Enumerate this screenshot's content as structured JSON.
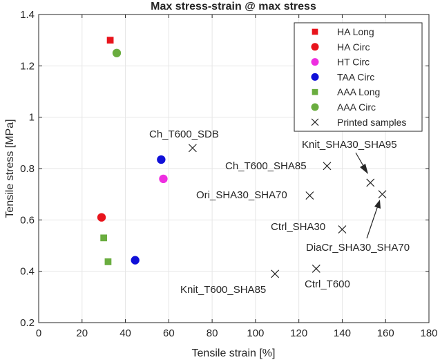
{
  "chart_data": {
    "type": "scatter",
    "title": "Max stress-strain @ max stress",
    "xlabel": "Tensile strain [%]",
    "ylabel": "Tensile stress [MPa]",
    "xlim": [
      0,
      180
    ],
    "ylim": [
      0.2,
      1.4
    ],
    "xticks": [
      0,
      20,
      40,
      60,
      80,
      100,
      120,
      140,
      160,
      180
    ],
    "yticks": [
      0.2,
      0.4,
      0.6,
      0.8,
      1.0,
      1.2,
      1.4
    ],
    "xtick_labels": [
      "0",
      "20",
      "40",
      "60",
      "80",
      "100",
      "120",
      "140",
      "160",
      "180"
    ],
    "ytick_labels": [
      "0.2",
      "0.4",
      "0.6",
      "0.8",
      "1",
      "1.2",
      "1.4"
    ],
    "grid": true,
    "legend_position": "top-right",
    "series": [
      {
        "name": "HA Long",
        "marker": "square",
        "color": "#e8141c",
        "points": [
          {
            "x": 33,
            "y": 1.3
          }
        ]
      },
      {
        "name": "HA Circ",
        "marker": "circle",
        "color": "#e8141c",
        "points": [
          {
            "x": 29,
            "y": 0.61
          }
        ]
      },
      {
        "name": "HT Circ",
        "marker": "circle",
        "color": "#ee2ee0",
        "points": [
          {
            "x": 57.5,
            "y": 0.76
          }
        ]
      },
      {
        "name": "TAA Circ",
        "marker": "circle",
        "color": "#1010d8",
        "points": [
          {
            "x": 56.5,
            "y": 0.835
          },
          {
            "x": 44.5,
            "y": 0.443
          }
        ]
      },
      {
        "name": "AAA Long",
        "marker": "square",
        "color": "#6aad3f",
        "points": [
          {
            "x": 30,
            "y": 0.53
          },
          {
            "x": 32,
            "y": 0.437
          }
        ]
      },
      {
        "name": "AAA Circ",
        "marker": "circle",
        "color": "#6aad3f",
        "points": [
          {
            "x": 36,
            "y": 1.25
          }
        ]
      },
      {
        "name": "Printed samples",
        "marker": "x",
        "color": "#262626",
        "points": [
          {
            "x": 71,
            "y": 0.88,
            "label": "Ch_T600_SDB"
          },
          {
            "x": 133,
            "y": 0.81,
            "label": "Ch_T600_SHA85"
          },
          {
            "x": 125,
            "y": 0.695,
            "label": "Ori_SHA30_SHA70"
          },
          {
            "x": 153,
            "y": 0.745,
            "label": "Knit_SHA30_SHA95"
          },
          {
            "x": 158.5,
            "y": 0.7,
            "label": "DiaCr_SHA30_SHA70"
          },
          {
            "x": 140,
            "y": 0.563,
            "label": "Ctrl_SHA30"
          },
          {
            "x": 109,
            "y": 0.39,
            "label": "Knit_T600_SHA85"
          },
          {
            "x": 128,
            "y": 0.41,
            "label": "Ctrl_T600"
          }
        ]
      }
    ]
  },
  "annotations": [
    {
      "text": "Ch_T600_SDB"
    },
    {
      "text": "Ch_T600_SHA85"
    },
    {
      "text": "Ori_SHA30_SHA70"
    },
    {
      "text": "Knit_SHA30_SHA95"
    },
    {
      "text": "Ctrl_SHA30"
    },
    {
      "text": "DiaCr_SHA30_SHA70"
    },
    {
      "text": "Knit_T600_SHA85"
    },
    {
      "text": "Ctrl_T600"
    }
  ]
}
